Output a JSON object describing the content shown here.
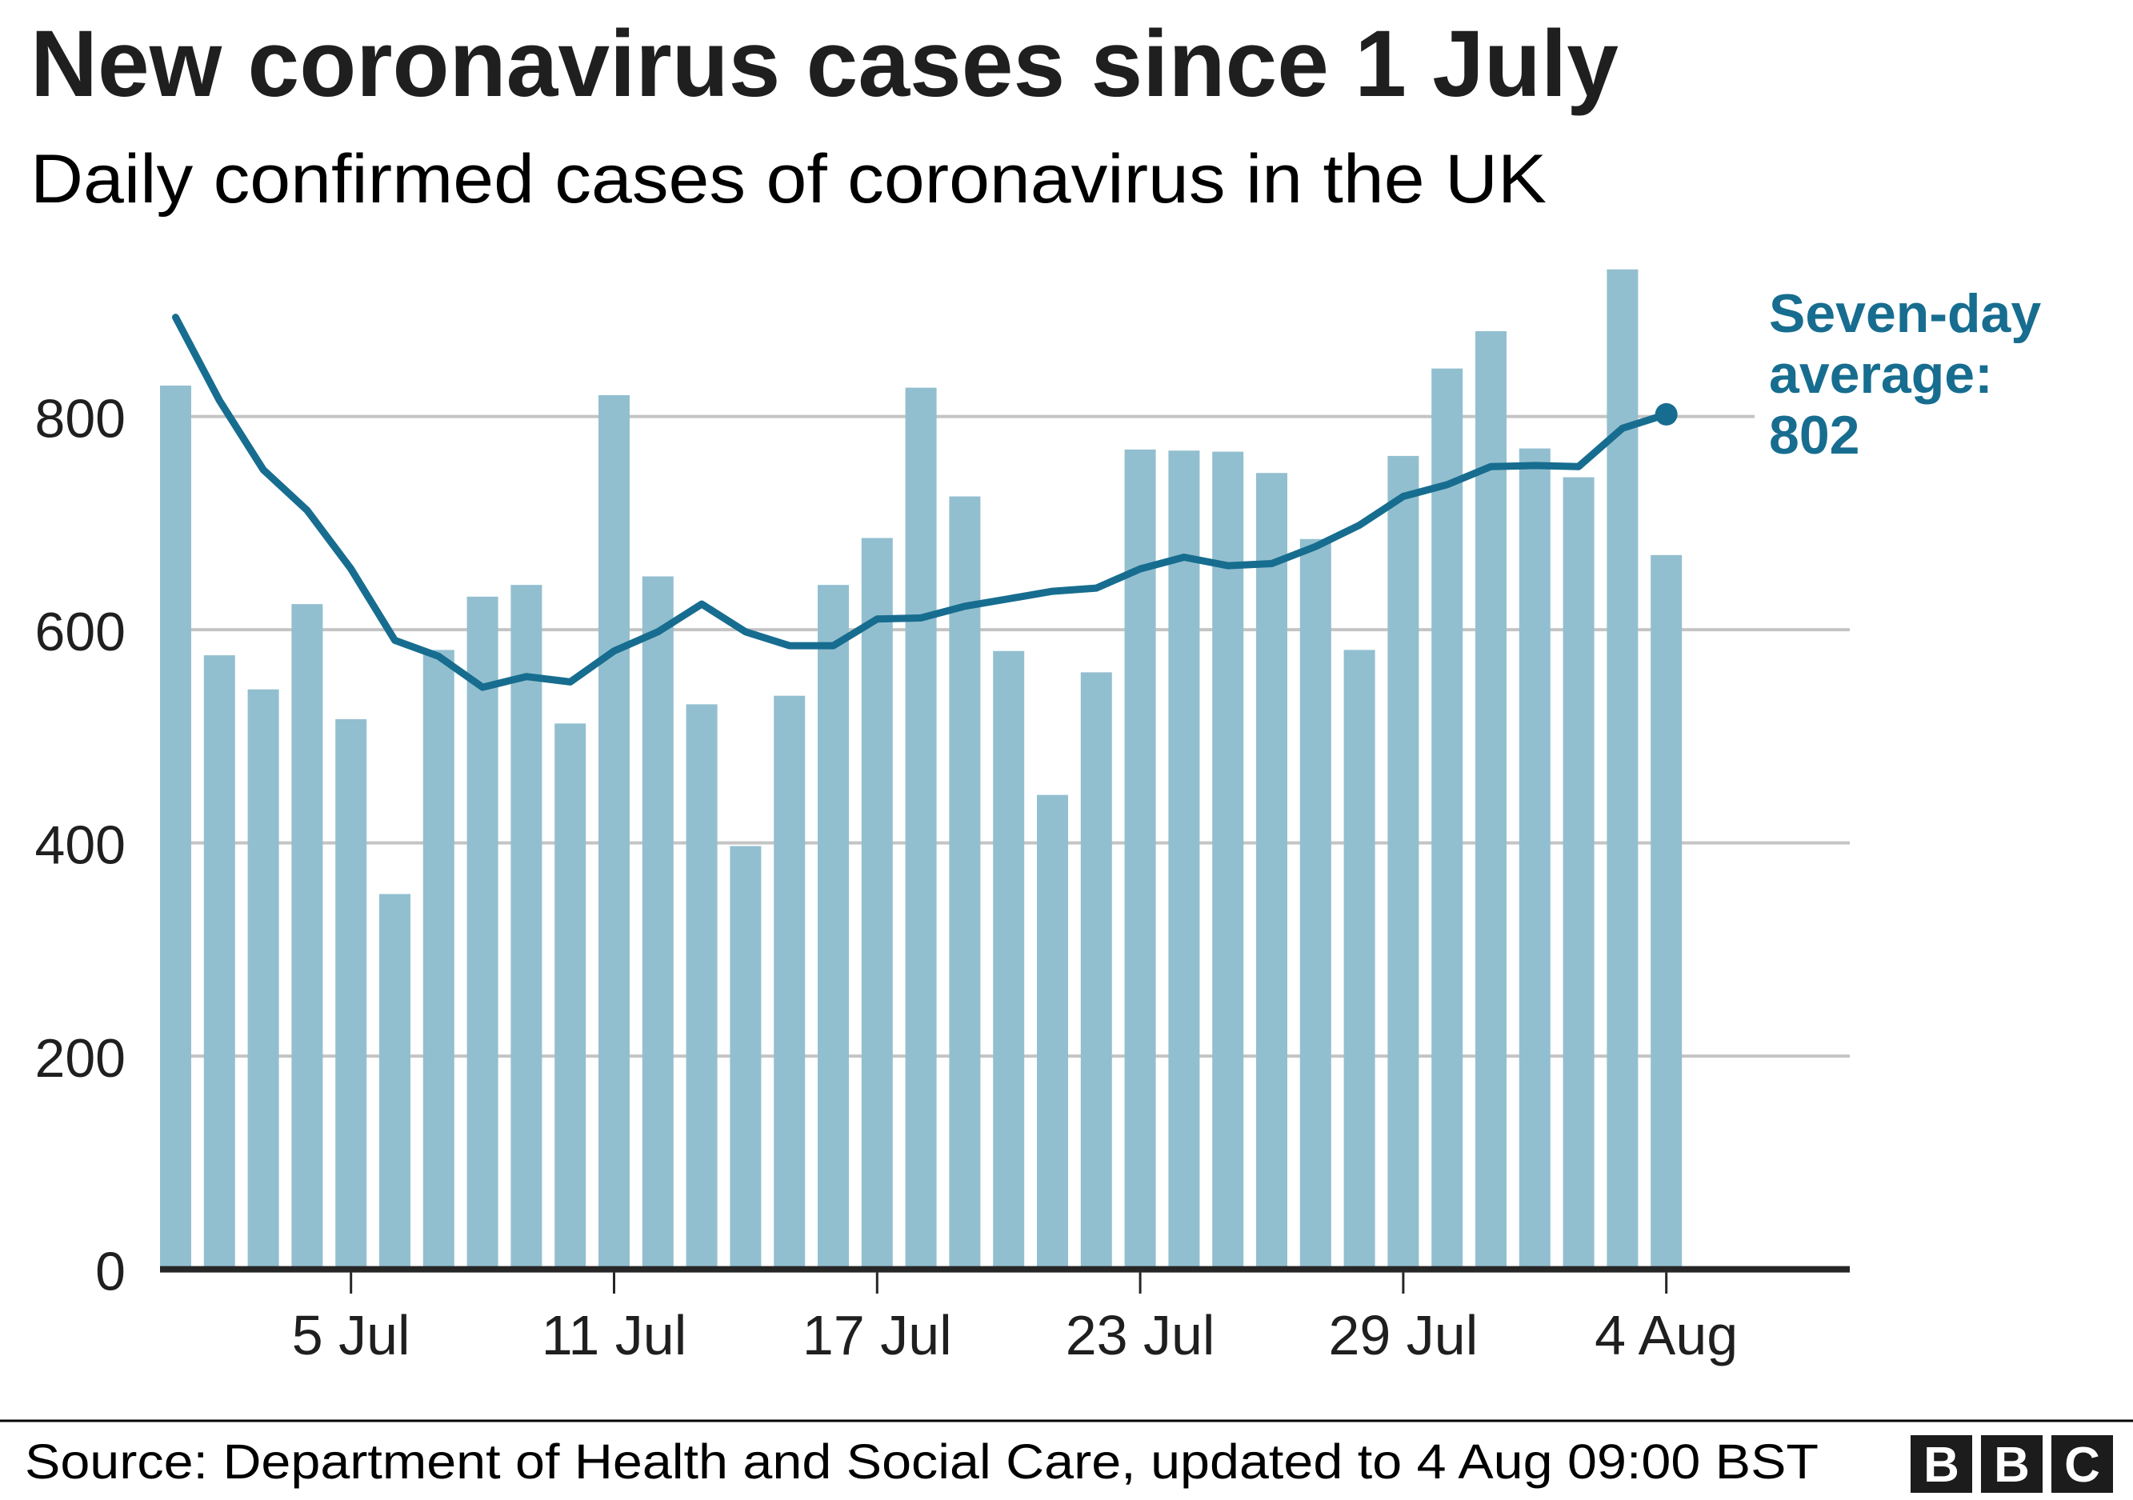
{
  "title": "New coronavirus cases since 1 July",
  "subtitle": "Daily confirmed cases of coronavirus in the UK",
  "annotation": {
    "lines": [
      "Seven-day",
      "average:",
      "802"
    ]
  },
  "footer": {
    "source": "Source: Department of Health and Social Care, updated to 4 Aug 09:00 BST",
    "logo_letters": [
      "B",
      "B",
      "C"
    ]
  },
  "colors": {
    "bar": "#92bfcf",
    "line": "#176d8f",
    "grid": "#c4c4c4",
    "axis": "#262626",
    "logo": "#1c1c1c"
  },
  "chart_data": {
    "type": "bar",
    "title": "New coronavirus cases since 1 July",
    "subtitle": "Daily confirmed cases of coronavirus in the UK",
    "xlabel": "",
    "ylabel": "",
    "ylim": [
      0,
      950
    ],
    "yticks": [
      0,
      200,
      400,
      600,
      800
    ],
    "ytick_labels": [
      "0",
      "200",
      "400",
      "600",
      "800"
    ],
    "grid": true,
    "x": [
      "1 Jul",
      "2 Jul",
      "3 Jul",
      "4 Jul",
      "5 Jul",
      "6 Jul",
      "7 Jul",
      "8 Jul",
      "9 Jul",
      "10 Jul",
      "11 Jul",
      "12 Jul",
      "13 Jul",
      "14 Jul",
      "15 Jul",
      "16 Jul",
      "17 Jul",
      "18 Jul",
      "19 Jul",
      "20 Jul",
      "21 Jul",
      "22 Jul",
      "23 Jul",
      "24 Jul",
      "25 Jul",
      "26 Jul",
      "27 Jul",
      "28 Jul",
      "29 Jul",
      "30 Jul",
      "31 Jul",
      "1 Aug",
      "2 Aug",
      "3 Aug",
      "4 Aug"
    ],
    "xticks": [
      {
        "index": 4,
        "label": "5 Jul"
      },
      {
        "index": 10,
        "label": "11 Jul"
      },
      {
        "index": 16,
        "label": "17 Jul"
      },
      {
        "index": 22,
        "label": "23 Jul"
      },
      {
        "index": 28,
        "label": "29 Jul"
      },
      {
        "index": 34,
        "label": "4 Aug"
      }
    ],
    "series": [
      {
        "name": "Daily confirmed cases",
        "type": "bar",
        "values": [
          829,
          576,
          544,
          624,
          516,
          352,
          581,
          631,
          642,
          512,
          820,
          650,
          530,
          397,
          538,
          642,
          686,
          827,
          725,
          580,
          445,
          560,
          769,
          768,
          767,
          747,
          685,
          581,
          763,
          845,
          880,
          770,
          743,
          938,
          670
        ]
      },
      {
        "name": "Seven-day average",
        "type": "line",
        "values": [
          893,
          815,
          750,
          712,
          657,
          590,
          575,
          546,
          556,
          551,
          580,
          598,
          624,
          598,
          585,
          585,
          610,
          611,
          622,
          629,
          636,
          639,
          657,
          668,
          660,
          662,
          678,
          698,
          725,
          736,
          753,
          754,
          753,
          789,
          802
        ]
      }
    ],
    "annotations": [
      {
        "text": "Seven-day average: 802",
        "target_index": 34,
        "value": 802
      }
    ]
  }
}
